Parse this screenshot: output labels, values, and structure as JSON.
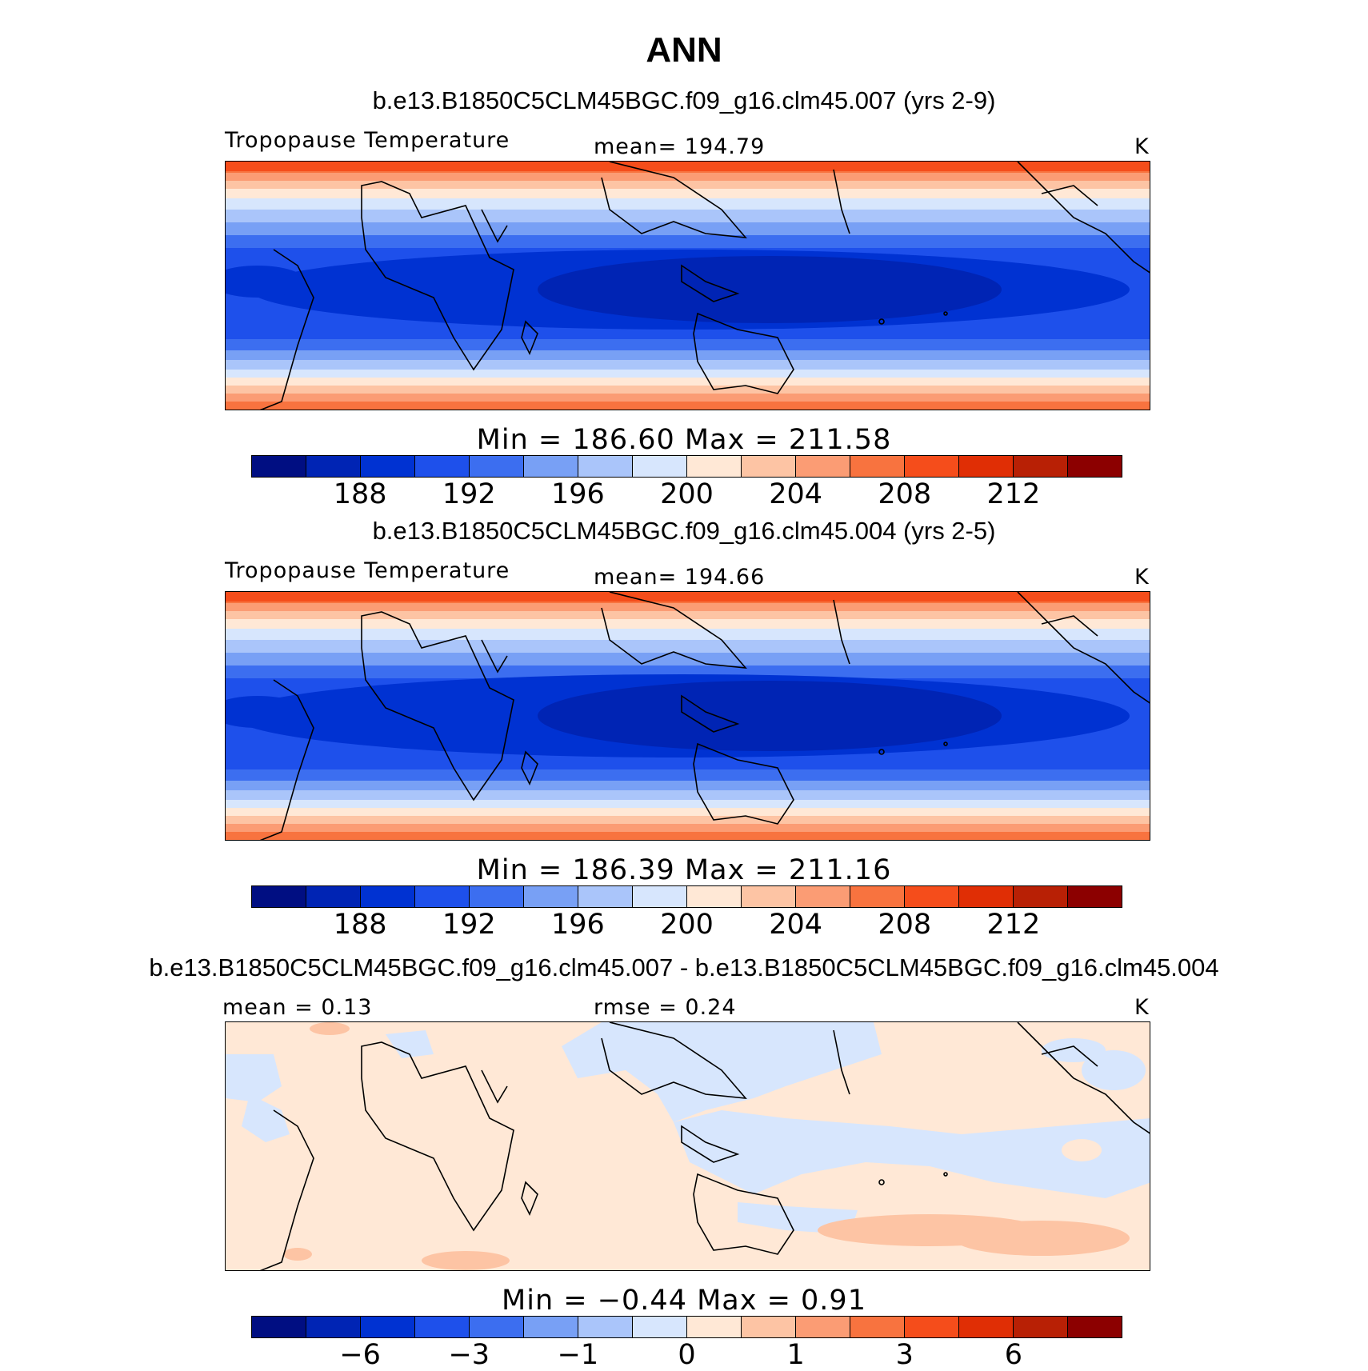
{
  "title": "ANN",
  "colors": [
    "#000e82",
    "#0024b4",
    "#0032d2",
    "#1e50eb",
    "#3c6ef0",
    "#78a0f5",
    "#aac5fa",
    "#d7e6fd",
    "#ffe8d6",
    "#fdc4a4",
    "#fb9c74",
    "#f8733f",
    "#f54d1b",
    "#e02e05",
    "#b82005",
    "#8c0000"
  ],
  "panels": [
    {
      "case_title": "b.e13.B1850C5CLM45BGC.f09_g16.clm45.007 (yrs 2-9)",
      "left_label": "Tropopause Temperature",
      "center_label": "mean= 194.79",
      "units": "K",
      "minmax": "Min  =  186.60  Max  =  211.58",
      "tick_labels": [
        "188",
        "192",
        "196",
        "200",
        "204",
        "208",
        "212"
      ]
    },
    {
      "case_title": "b.e13.B1850C5CLM45BGC.f09_g16.clm45.004 (yrs 2-5)",
      "left_label": "Tropopause Temperature",
      "center_label": "mean= 194.66",
      "units": "K",
      "minmax": "Min  =  186.39  Max  =  211.16",
      "tick_labels": [
        "188",
        "192",
        "196",
        "200",
        "204",
        "208",
        "212"
      ]
    },
    {
      "case_title": "b.e13.B1850C5CLM45BGC.f09_g16.clm45.007 - b.e13.B1850C5CLM45BGC.f09_g16.clm45.004",
      "left_label": "mean =    0.13",
      "center_label": "rmse =    0.24",
      "units": "K",
      "minmax": "Min  =   −0.44  Max  =     0.91",
      "tick_labels": [
        "−6",
        "−3",
        "−1",
        "0",
        "1",
        "3",
        "6"
      ]
    }
  ]
}
